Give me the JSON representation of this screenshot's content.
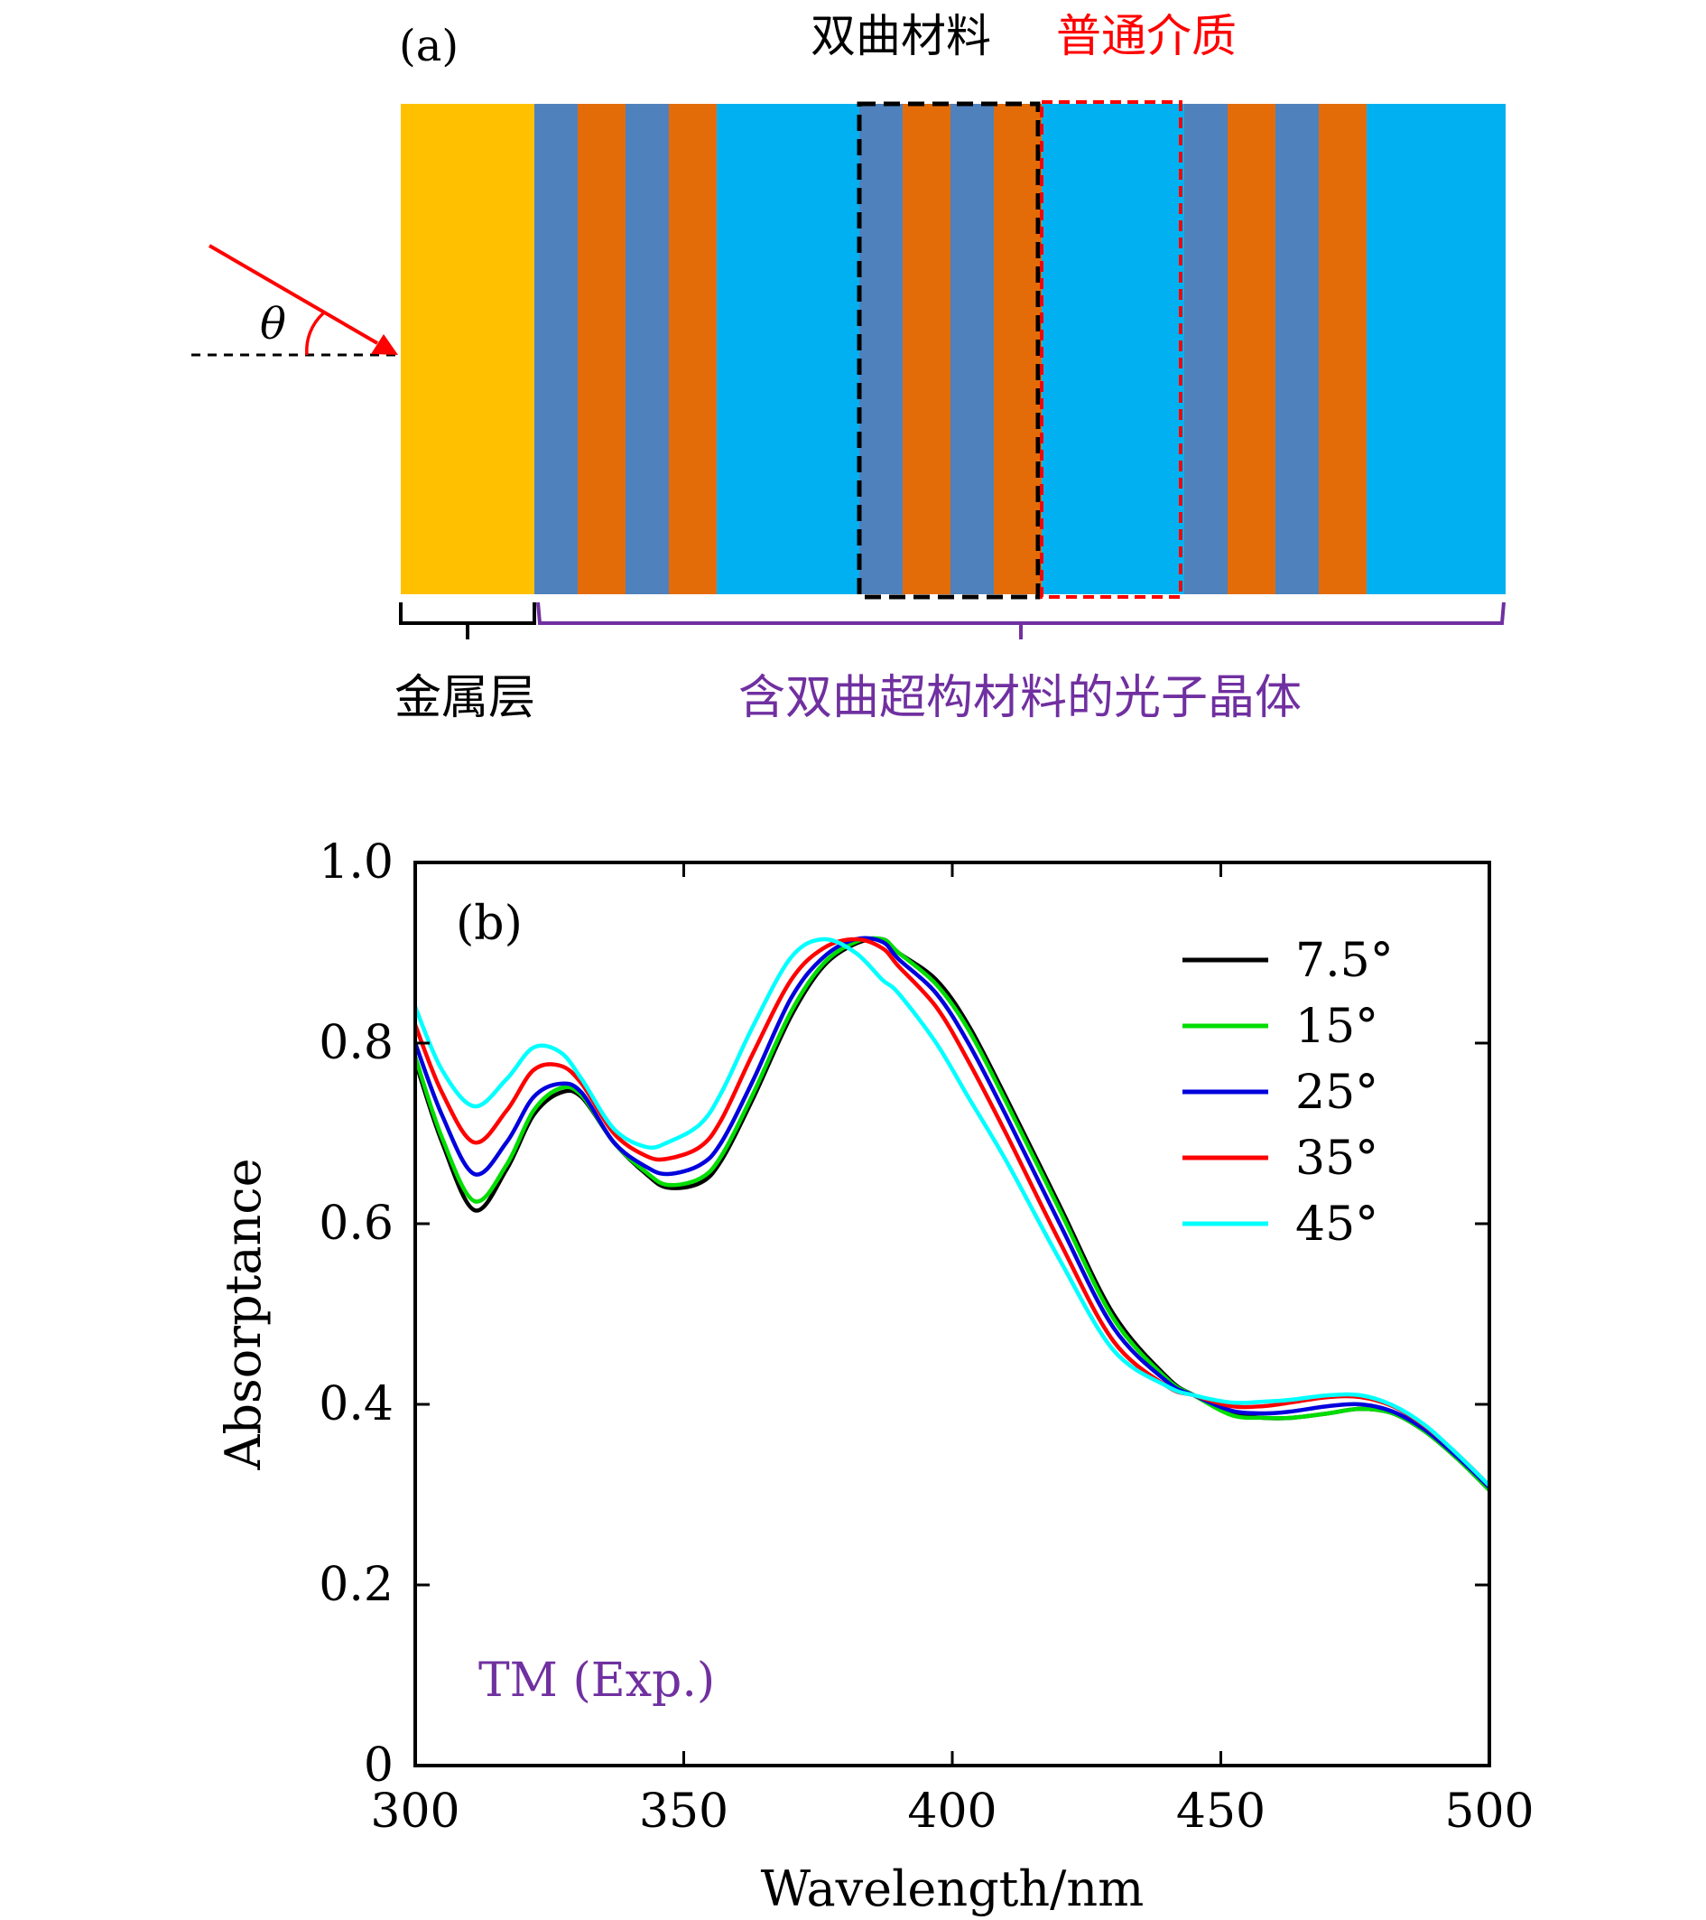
{
  "panel_a": {
    "label": "(a)",
    "angle_symbol": "θ",
    "legend_hyperbolic": "双曲材料",
    "legend_ordinary": "普通介质",
    "metal_label": "金属层",
    "pc_label": "含双曲超构材料的光子晶体",
    "colors": {
      "metal": "#FFC000",
      "hmm_blue": "#4F81BD",
      "hmm_orange": "#E36C09",
      "dielectric": "#00B0F0",
      "arrow": "#FF0000",
      "purple": "#7030A0"
    }
  },
  "chart_data": {
    "type": "line",
    "panel_label": "(b)",
    "annotation": "TM (Exp.)",
    "xlabel": "Wavelength/nm",
    "ylabel": "Absorptance",
    "xlim": [
      300,
      500
    ],
    "ylim": [
      0,
      1.0
    ],
    "xticks": [
      300,
      350,
      400,
      450,
      500
    ],
    "yticks": [
      0,
      0.2,
      0.4,
      0.6,
      0.8,
      1.0
    ],
    "ytick_labels": [
      "0",
      "0.2",
      "0.4",
      "0.6",
      "0.8",
      "1.0"
    ],
    "grid": false,
    "legend_position": "top-right",
    "series": [
      {
        "name": "7.5°",
        "color": "#000000",
        "x": [
          300,
          305,
          311,
          317,
          322,
          327,
          331,
          337,
          343,
          347,
          353,
          357,
          363,
          370,
          376,
          382,
          387,
          390,
          397,
          403,
          410,
          420,
          430,
          440,
          445,
          452,
          458,
          463,
          470,
          476,
          482,
          488,
          494,
          500
        ],
        "y": [
          0.78,
          0.69,
          0.615,
          0.66,
          0.72,
          0.745,
          0.74,
          0.69,
          0.655,
          0.64,
          0.645,
          0.67,
          0.74,
          0.83,
          0.885,
          0.91,
          0.915,
          0.9,
          0.87,
          0.82,
          0.74,
          0.62,
          0.5,
          0.43,
          0.41,
          0.39,
          0.385,
          0.385,
          0.39,
          0.395,
          0.39,
          0.37,
          0.34,
          0.305
        ]
      },
      {
        "name": "15°",
        "color": "#00DD00",
        "x": [
          300,
          305,
          311,
          317,
          322,
          327,
          331,
          337,
          343,
          347,
          353,
          357,
          363,
          370,
          376,
          382,
          387,
          390,
          397,
          403,
          410,
          420,
          430,
          440,
          445,
          452,
          458,
          463,
          470,
          476,
          482,
          488,
          494,
          500
        ],
        "y": [
          0.785,
          0.695,
          0.625,
          0.665,
          0.725,
          0.75,
          0.742,
          0.69,
          0.657,
          0.643,
          0.65,
          0.675,
          0.745,
          0.835,
          0.888,
          0.912,
          0.915,
          0.9,
          0.865,
          0.815,
          0.735,
          0.615,
          0.495,
          0.428,
          0.41,
          0.388,
          0.385,
          0.385,
          0.39,
          0.395,
          0.39,
          0.37,
          0.34,
          0.305
        ]
      },
      {
        "name": "25°",
        "color": "#0000DD",
        "x": [
          300,
          305,
          311,
          317,
          322,
          327,
          331,
          337,
          343,
          347,
          353,
          357,
          363,
          370,
          376,
          382,
          387,
          390,
          397,
          403,
          410,
          420,
          430,
          440,
          445,
          452,
          458,
          463,
          470,
          476,
          482,
          488,
          494,
          500
        ],
        "y": [
          0.8,
          0.72,
          0.655,
          0.69,
          0.74,
          0.755,
          0.745,
          0.69,
          0.663,
          0.655,
          0.665,
          0.69,
          0.76,
          0.85,
          0.895,
          0.915,
          0.912,
          0.893,
          0.855,
          0.8,
          0.72,
          0.6,
          0.485,
          0.425,
          0.41,
          0.393,
          0.39,
          0.392,
          0.398,
          0.4,
          0.392,
          0.372,
          0.342,
          0.308
        ]
      },
      {
        "name": "35°",
        "color": "#FF0000",
        "x": [
          300,
          305,
          311,
          317,
          322,
          327,
          331,
          337,
          343,
          347,
          353,
          357,
          363,
          370,
          376,
          382,
          387,
          390,
          397,
          403,
          410,
          420,
          430,
          440,
          445,
          452,
          458,
          463,
          470,
          476,
          482,
          488,
          494,
          500
        ],
        "y": [
          0.82,
          0.745,
          0.69,
          0.725,
          0.77,
          0.775,
          0.755,
          0.7,
          0.675,
          0.672,
          0.685,
          0.715,
          0.79,
          0.87,
          0.905,
          0.915,
          0.905,
          0.885,
          0.84,
          0.78,
          0.7,
          0.58,
          0.47,
          0.42,
          0.41,
          0.398,
          0.398,
          0.402,
          0.408,
          0.408,
          0.398,
          0.376,
          0.345,
          0.31
        ]
      },
      {
        "name": "45°",
        "color": "#00FFFF",
        "x": [
          300,
          305,
          311,
          317,
          322,
          327,
          331,
          337,
          343,
          347,
          353,
          357,
          363,
          370,
          376,
          382,
          387,
          390,
          397,
          403,
          410,
          420,
          430,
          440,
          445,
          452,
          458,
          463,
          470,
          476,
          482,
          488,
          494,
          500
        ],
        "y": [
          0.84,
          0.77,
          0.73,
          0.76,
          0.795,
          0.79,
          0.76,
          0.705,
          0.685,
          0.69,
          0.71,
          0.745,
          0.82,
          0.895,
          0.915,
          0.9,
          0.87,
          0.855,
          0.8,
          0.74,
          0.67,
          0.56,
          0.46,
          0.42,
          0.41,
          0.402,
          0.403,
          0.405,
          0.41,
          0.41,
          0.399,
          0.377,
          0.345,
          0.31
        ]
      }
    ]
  }
}
